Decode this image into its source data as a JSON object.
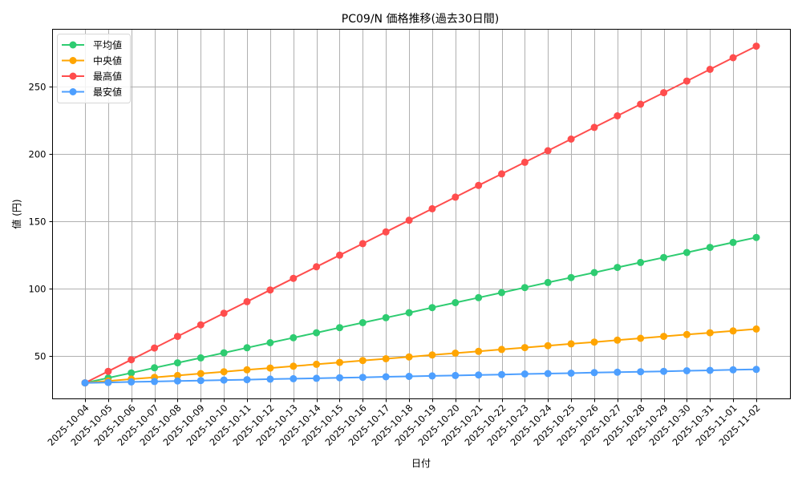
{
  "chart_data": {
    "type": "line",
    "title": "PC09/N 価格推移(過去30日間)",
    "xlabel": "日付",
    "ylabel": "値 (円)",
    "ylim": [
      18.5,
      293
    ],
    "yticks": [
      50,
      100,
      150,
      200,
      250
    ],
    "grid": true,
    "legend_position": "upper left",
    "categories": [
      "2025-10-04",
      "2025-10-05",
      "2025-10-06",
      "2025-10-07",
      "2025-10-08",
      "2025-10-09",
      "2025-10-10",
      "2025-10-11",
      "2025-10-12",
      "2025-10-13",
      "2025-10-14",
      "2025-10-15",
      "2025-10-16",
      "2025-10-17",
      "2025-10-18",
      "2025-10-19",
      "2025-10-20",
      "2025-10-21",
      "2025-10-22",
      "2025-10-23",
      "2025-10-24",
      "2025-10-25",
      "2025-10-26",
      "2025-10-27",
      "2025-10-28",
      "2025-10-29",
      "2025-10-30",
      "2025-10-31",
      "2025-11-01",
      "2025-11-02"
    ],
    "series": [
      {
        "name": "平均値",
        "color": "#2ecc71",
        "values": [
          30.0,
          33.7,
          37.4,
          41.2,
          44.9,
          48.6,
          52.3,
          56.1,
          59.8,
          63.5,
          67.2,
          71.0,
          74.7,
          78.4,
          82.1,
          85.9,
          89.6,
          93.3,
          97.0,
          100.8,
          104.5,
          108.2,
          111.9,
          115.7,
          119.4,
          123.1,
          126.8,
          130.6,
          134.3,
          138.0
        ]
      },
      {
        "name": "中央値",
        "color": "#ffa500",
        "values": [
          30.0,
          31.4,
          32.8,
          34.1,
          35.5,
          36.9,
          38.3,
          39.7,
          41.0,
          42.4,
          43.8,
          45.2,
          46.6,
          47.9,
          49.3,
          50.7,
          52.1,
          53.4,
          54.8,
          56.2,
          57.6,
          59.0,
          60.3,
          61.7,
          63.1,
          64.5,
          65.9,
          67.2,
          68.6,
          70.0
        ]
      },
      {
        "name": "最高値",
        "color": "#ff4d4d",
        "values": [
          30.0,
          38.6,
          47.2,
          55.9,
          64.5,
          73.1,
          81.7,
          90.3,
          99.0,
          107.6,
          116.2,
          124.8,
          133.4,
          142.1,
          150.7,
          159.3,
          167.9,
          176.6,
          185.2,
          193.8,
          202.4,
          211.0,
          219.7,
          228.3,
          236.9,
          245.5,
          254.1,
          262.8,
          271.4,
          280.0
        ]
      },
      {
        "name": "最安値",
        "color": "#4d9fff",
        "values": [
          30.0,
          30.3,
          30.7,
          31.0,
          31.4,
          31.7,
          32.1,
          32.4,
          32.8,
          33.1,
          33.4,
          33.8,
          34.1,
          34.5,
          34.8,
          35.2,
          35.5,
          35.9,
          36.2,
          36.6,
          36.9,
          37.2,
          37.6,
          37.9,
          38.3,
          38.6,
          39.0,
          39.3,
          39.7,
          40.0
        ]
      }
    ]
  }
}
